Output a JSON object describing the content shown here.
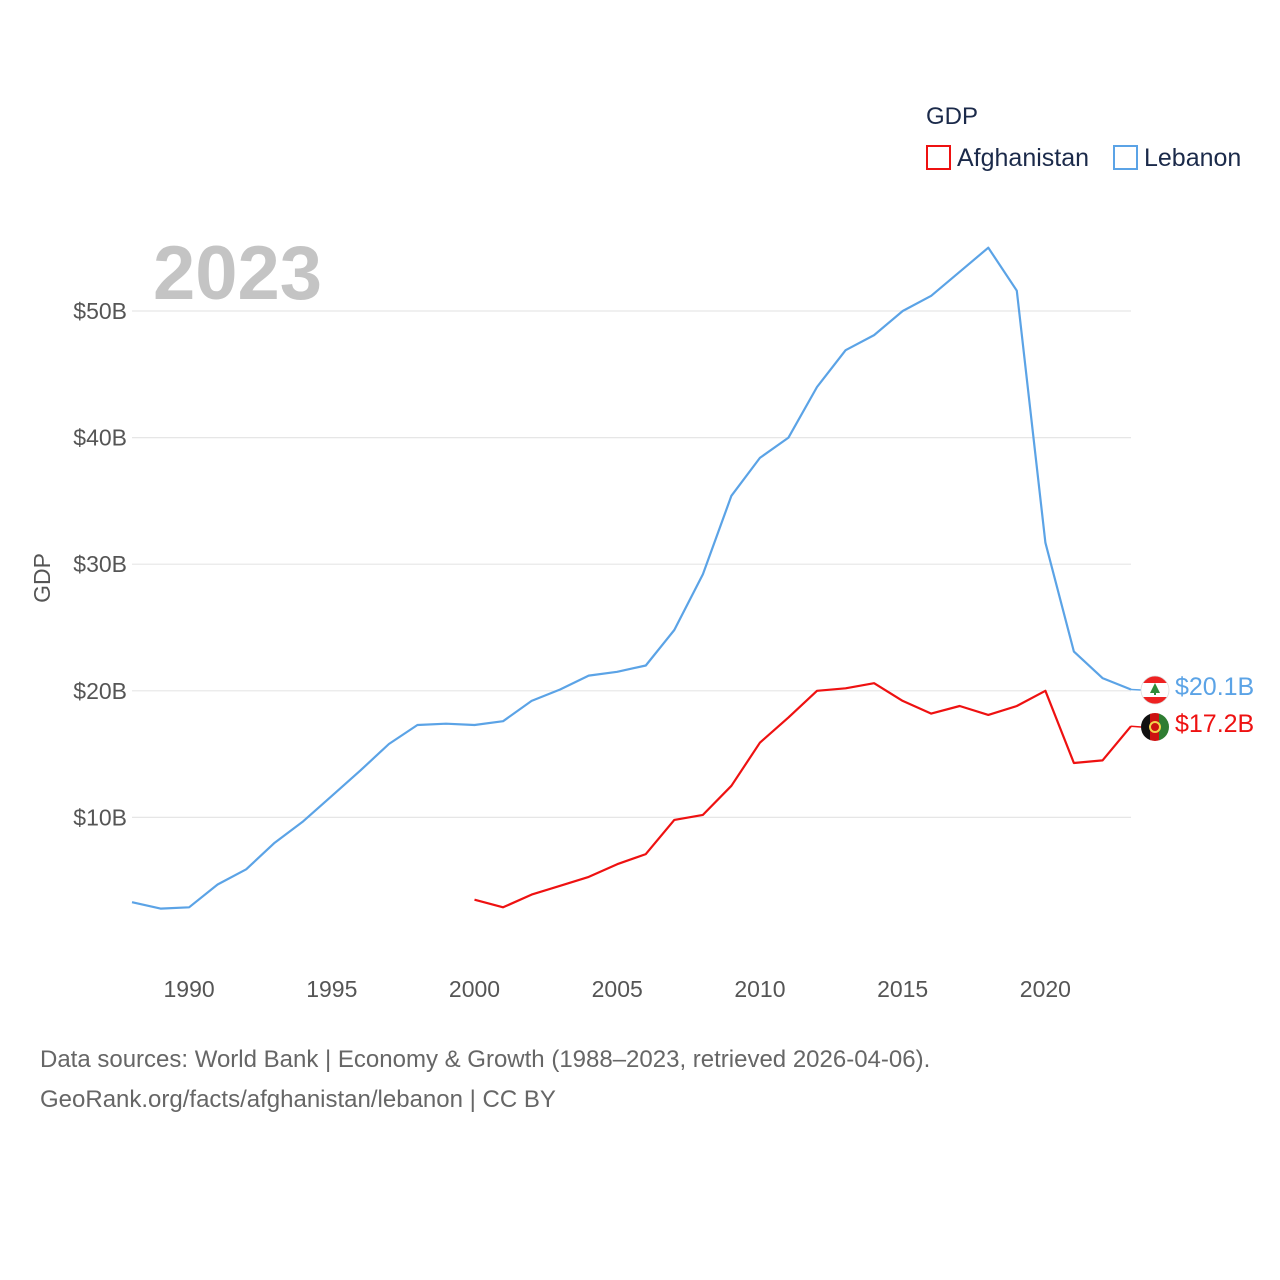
{
  "legend": {
    "title": "GDP",
    "items": [
      {
        "name": "Afghanistan",
        "color": "#ee1111"
      },
      {
        "name": "Lebanon",
        "color": "#5ba3e6"
      }
    ]
  },
  "chart_data": {
    "type": "line",
    "title": "",
    "current_year_label": "2023",
    "ylabel": "GDP",
    "xlabel": "",
    "xlim": [
      1988,
      2023
    ],
    "ylim": [
      0,
      58
    ],
    "x_ticks": [
      1990,
      1995,
      2000,
      2005,
      2010,
      2015,
      2020
    ],
    "y_ticks": [
      {
        "value": 10,
        "label": "$10B"
      },
      {
        "value": 20,
        "label": "$20B"
      },
      {
        "value": 30,
        "label": "$30B"
      },
      {
        "value": 40,
        "label": "$40B"
      },
      {
        "value": 50,
        "label": "$50B"
      }
    ],
    "y_unit": "billion USD",
    "series": [
      {
        "name": "Afghanistan",
        "color": "#ee1111",
        "end_label": "$17.2B",
        "flag": "afghanistan-flag",
        "x": [
          2000,
          2001,
          2002,
          2003,
          2004,
          2005,
          2006,
          2007,
          2008,
          2009,
          2010,
          2011,
          2012,
          2013,
          2014,
          2015,
          2016,
          2017,
          2018,
          2019,
          2020,
          2021,
          2022,
          2023
        ],
        "values": [
          3.5,
          2.9,
          3.9,
          4.6,
          5.3,
          6.3,
          7.1,
          9.8,
          10.2,
          12.5,
          15.9,
          17.9,
          20.0,
          20.2,
          20.6,
          19.2,
          18.2,
          18.8,
          18.1,
          18.8,
          20.0,
          14.3,
          14.5,
          17.2
        ]
      },
      {
        "name": "Lebanon",
        "color": "#5ba3e6",
        "end_label": "$20.1B",
        "flag": "lebanon-flag",
        "x": [
          1988,
          1989,
          1990,
          1991,
          1992,
          1993,
          1994,
          1995,
          1996,
          1997,
          1998,
          1999,
          2000,
          2001,
          2002,
          2003,
          2004,
          2005,
          2006,
          2007,
          2008,
          2009,
          2010,
          2011,
          2012,
          2013,
          2014,
          2015,
          2016,
          2017,
          2018,
          2019,
          2020,
          2021,
          2022,
          2023
        ],
        "values": [
          3.3,
          2.8,
          2.9,
          4.7,
          5.9,
          8.0,
          9.7,
          11.7,
          13.7,
          15.8,
          17.3,
          17.4,
          17.3,
          17.6,
          19.2,
          20.1,
          21.2,
          21.5,
          22.0,
          24.8,
          29.2,
          35.4,
          38.4,
          40.0,
          44.0,
          46.9,
          48.1,
          50.0,
          51.2,
          53.1,
          55.0,
          51.6,
          31.7,
          23.1,
          21.0,
          20.1
        ]
      }
    ]
  },
  "footer": {
    "line1": "Data sources: World Bank | Economy & Growth (1988–2023, retrieved 2026-04-06).",
    "line2": "GeoRank.org/facts/afghanistan/lebanon | CC BY"
  }
}
